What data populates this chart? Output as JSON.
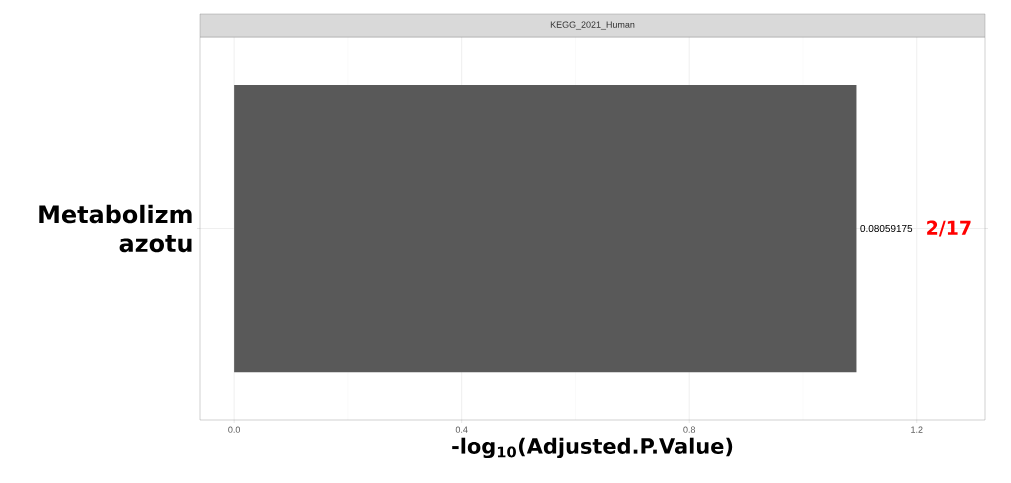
{
  "chart_data": {
    "type": "bar",
    "orientation": "horizontal",
    "title": "KEGG_2021_Human",
    "xlabel": "-log$_{10}$(Adjusted.P.Value)",
    "categories": [
      "Metabolizm azotu"
    ],
    "values": [
      1.094
    ],
    "color": "#595959",
    "xlim": [
      -0.06,
      1.32
    ],
    "xticks": [
      {
        "value": 0,
        "label": "0.0"
      },
      {
        "value": 0.4,
        "label": "0.4"
      },
      {
        "value": 0.8,
        "label": "0.8"
      },
      {
        "value": 1.2,
        "label": "1.2"
      }
    ],
    "grid": true,
    "annotations": [
      "0.08059175",
      "2/17"
    ]
  }
}
